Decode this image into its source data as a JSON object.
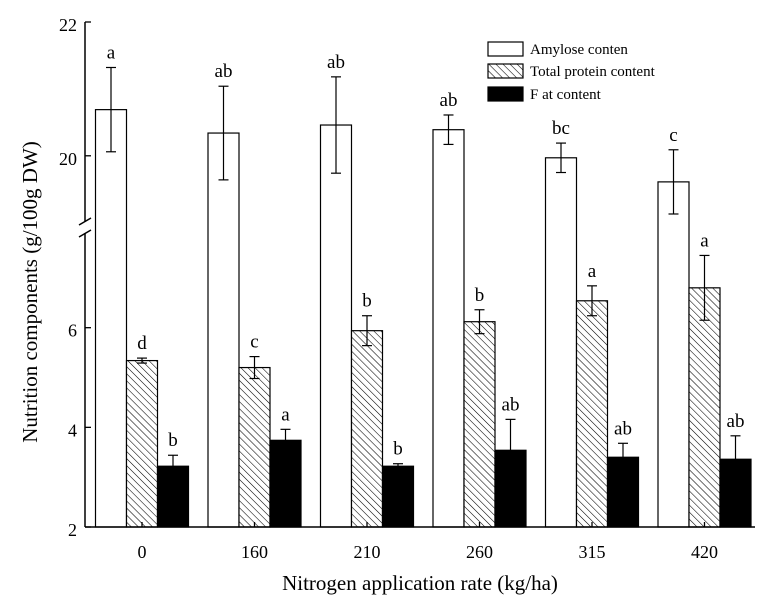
{
  "chart_data": {
    "type": "bar",
    "xlabel": "Nitrogen application rate (kg/ha)",
    "ylabel": "Nutrition components (g/100g DW)",
    "categories": [
      "0",
      "160",
      "210",
      "260",
      "315",
      "420"
    ],
    "y_axis_break": true,
    "ylim": {
      "lower": [
        2,
        7.8
      ],
      "upper": [
        19.1,
        22
      ]
    },
    "yticks": [
      2,
      4,
      6,
      20,
      22
    ],
    "grid": false,
    "legend_position": "top-right",
    "series": [
      {
        "name": "Amylose conten",
        "color": "#ffffff",
        "hatched": false,
        "values": [
          20.69,
          20.34,
          20.46,
          20.39,
          19.97,
          19.61
        ],
        "errors": [
          0.63,
          0.7,
          0.72,
          0.22,
          0.22,
          0.48
        ],
        "labels": [
          "a",
          "ab",
          "ab",
          "ab",
          "bc",
          "c"
        ]
      },
      {
        "name": "Total protein content",
        "color": "#ffffff",
        "hatched": true,
        "values": [
          5.34,
          5.2,
          5.94,
          6.12,
          6.54,
          6.8
        ],
        "errors": [
          0.05,
          0.22,
          0.3,
          0.24,
          0.3,
          0.65
        ],
        "labels": [
          "d",
          "c",
          "b",
          "b",
          "a",
          "a"
        ]
      },
      {
        "name": "F at content",
        "color": "#000000",
        "hatched": false,
        "values": [
          3.22,
          3.74,
          3.22,
          3.54,
          3.4,
          3.36
        ],
        "errors": [
          0.22,
          0.22,
          0.05,
          0.62,
          0.28,
          0.47
        ],
        "labels": [
          "b",
          "a",
          "b",
          "ab",
          "ab",
          "ab"
        ]
      }
    ]
  }
}
